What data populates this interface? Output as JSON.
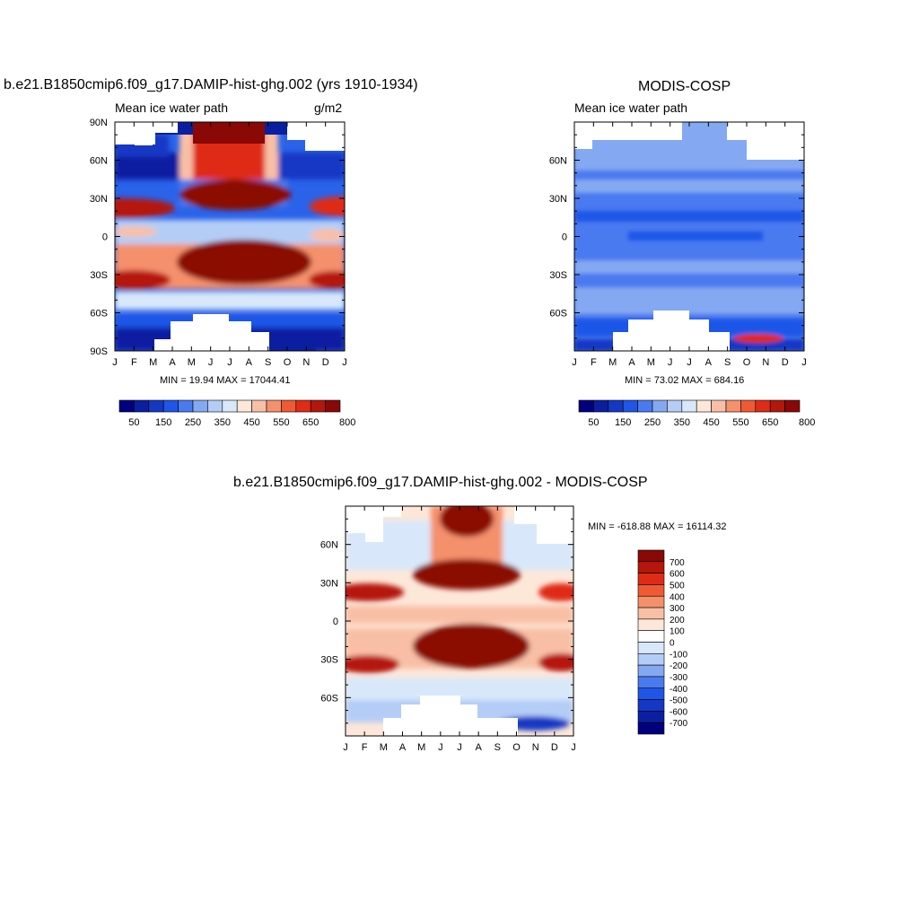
{
  "chart_data": [
    {
      "type": "heatmap",
      "title": "b.e21.B1850cmip6.f09_g17.DAMIP-hist-ghg.002 (yrs 1910-1934)",
      "left_label": "Mean ice water path",
      "right_label": "g/m2",
      "x_ticks": [
        "J",
        "F",
        "M",
        "A",
        "M",
        "J",
        "J",
        "A",
        "S",
        "O",
        "N",
        "D",
        "J"
      ],
      "y_ticks": [
        "90S",
        "60S",
        "30S",
        "0",
        "30N",
        "60N",
        "90N"
      ],
      "y_tick_values": [
        -90,
        -60,
        -30,
        0,
        30,
        60,
        90
      ],
      "ylim": [
        -90,
        90
      ],
      "min_label": "MIN =  19.94 MAX = 17044.41",
      "colorbar_labels": [
        "50",
        "150",
        "250",
        "350",
        "450",
        "550",
        "650",
        "800"
      ],
      "colorbar_colors": [
        "#00007f",
        "#0a1fa0",
        "#1538c4",
        "#1f56e8",
        "#4a7af0",
        "#85a8f2",
        "#b4cdf7",
        "#d8e8fa",
        "#fde7d9",
        "#f9bfa6",
        "#f5906c",
        "#ef5a34",
        "#df2c17",
        "#b5170d",
        "#8a0806"
      ]
    },
    {
      "type": "heatmap",
      "title": "MODIS-COSP",
      "left_label": "Mean ice water path",
      "x_ticks": [
        "J",
        "F",
        "M",
        "A",
        "M",
        "J",
        "J",
        "A",
        "S",
        "O",
        "N",
        "D",
        "J"
      ],
      "y_ticks": [
        "60S",
        "30S",
        "0",
        "30N",
        "60N"
      ],
      "y_tick_values": [
        -60,
        -30,
        0,
        30,
        60
      ],
      "ylim": [
        -90,
        90
      ],
      "min_label": "MIN =  73.02 MAX = 684.16",
      "colorbar_labels": [
        "50",
        "150",
        "250",
        "350",
        "450",
        "550",
        "650",
        "800"
      ]
    },
    {
      "type": "heatmap",
      "title": "b.e21.B1850cmip6.f09_g17.DAMIP-hist-ghg.002 - MODIS-COSP",
      "x_ticks": [
        "J",
        "F",
        "M",
        "A",
        "M",
        "J",
        "J",
        "A",
        "S",
        "O",
        "N",
        "D",
        "J"
      ],
      "y_ticks": [
        "60S",
        "30S",
        "0",
        "30N",
        "60N"
      ],
      "y_tick_values": [
        -60,
        -30,
        0,
        30,
        60
      ],
      "ylim": [
        -90,
        90
      ],
      "min_label": "MIN = -618.88 MAX = 16114.32",
      "colorbar_labels": [
        "700",
        "600",
        "500",
        "400",
        "300",
        "200",
        "100",
        "0",
        "-100",
        "-200",
        "-300",
        "-400",
        "-500",
        "-600",
        "-700"
      ],
      "colorbar_colors": [
        "#8a0806",
        "#b5170d",
        "#df2c17",
        "#ef5a34",
        "#f5906c",
        "#f9bfa6",
        "#fde7d9",
        "#ffffff",
        "#d8e8fa",
        "#b4cdf7",
        "#85a8f2",
        "#4a7af0",
        "#1f56e8",
        "#1538c4",
        "#0a1fa0",
        "#00007f"
      ]
    }
  ]
}
